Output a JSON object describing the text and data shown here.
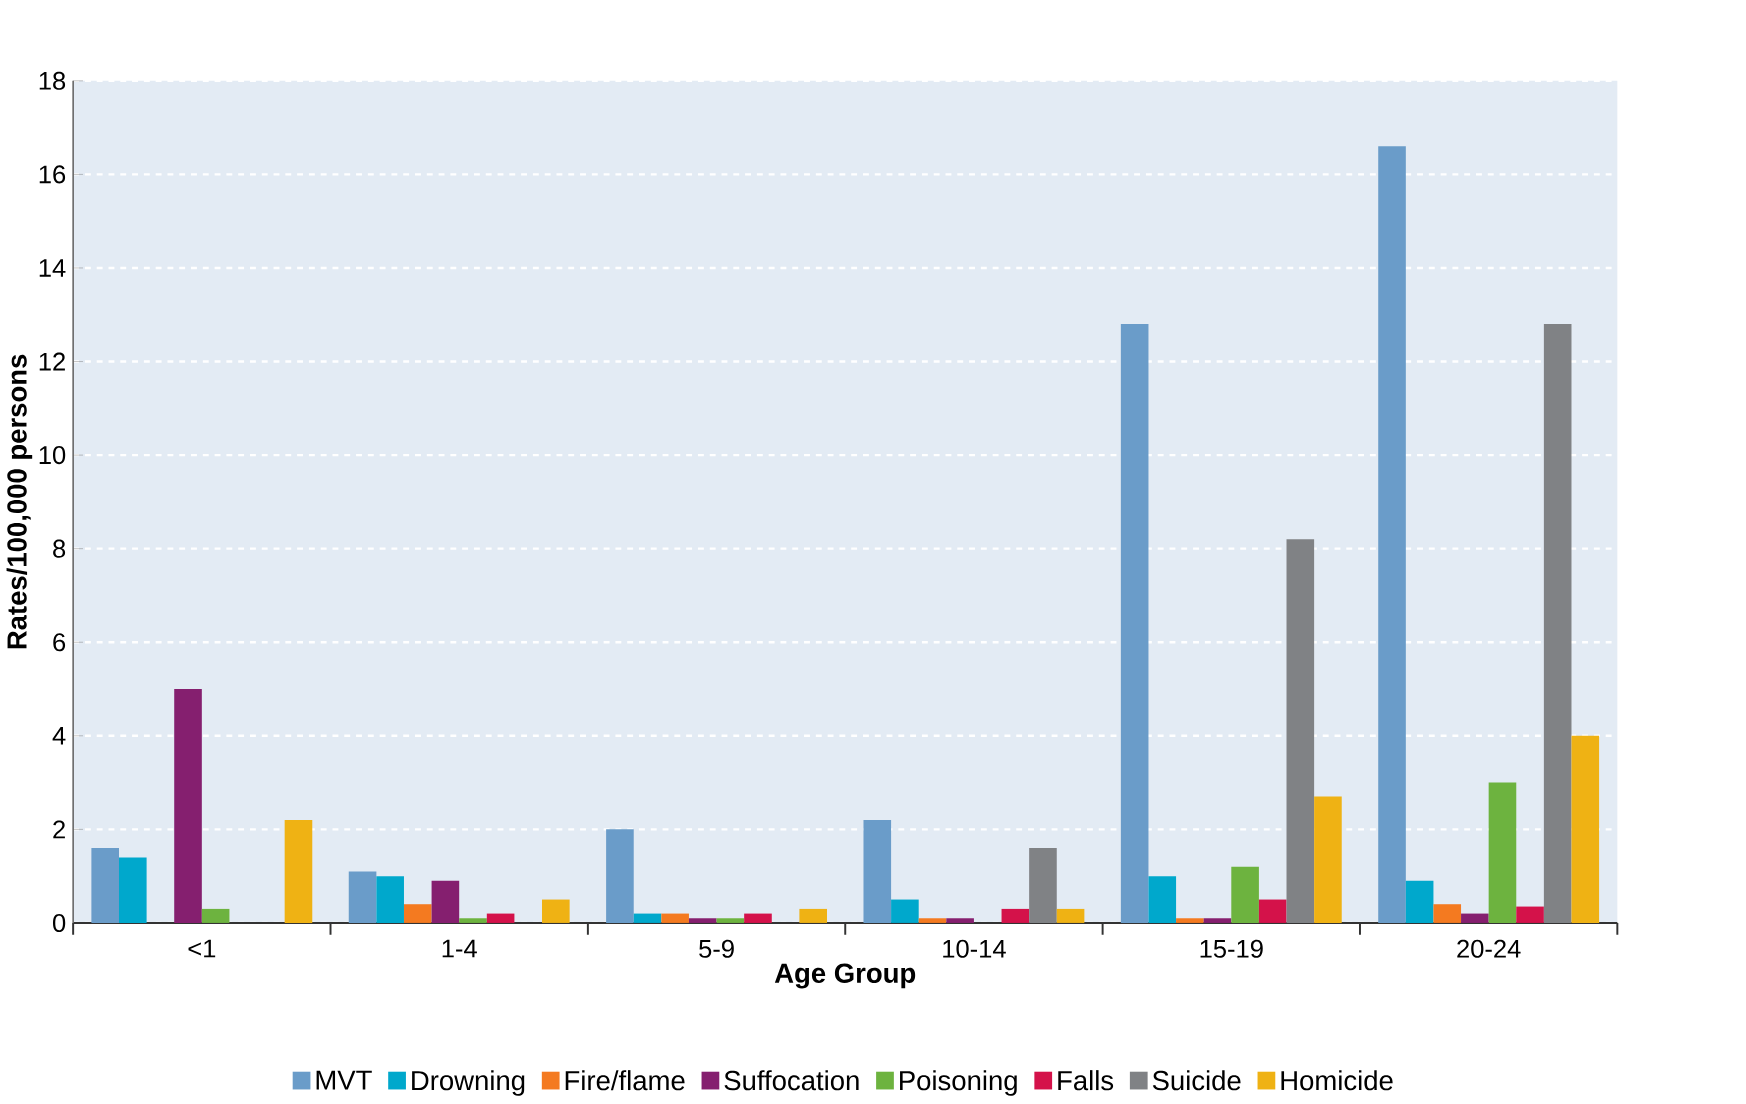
{
  "chart_data": {
    "type": "bar",
    "xlabel": "Age Group",
    "ylabel": "Rates/100,000 persons",
    "categories": [
      "<1",
      "1-4",
      "5-9",
      "10-14",
      "15-19",
      "20-24"
    ],
    "series": [
      {
        "name": "MVT",
        "color": "#6a9cc9",
        "values": [
          1.6,
          1.1,
          2.0,
          2.2,
          12.8,
          16.6
        ]
      },
      {
        "name": "Drowning",
        "color": "#00a8cc",
        "values": [
          1.4,
          1.0,
          0.2,
          0.5,
          1.0,
          0.9
        ]
      },
      {
        "name": "Fire/flame",
        "color": "#f47a20",
        "values": [
          null,
          0.4,
          0.2,
          0.1,
          0.1,
          0.4
        ]
      },
      {
        "name": "Suffocation",
        "color": "#851f6f",
        "values": [
          5.0,
          0.9,
          0.1,
          0.1,
          0.1,
          0.2
        ]
      },
      {
        "name": "Poisoning",
        "color": "#6db33f",
        "values": [
          0.3,
          0.1,
          0.1,
          null,
          1.2,
          3.0
        ]
      },
      {
        "name": "Falls",
        "color": "#d4124a",
        "values": [
          null,
          0.2,
          0.2,
          0.3,
          0.5,
          0.35
        ]
      },
      {
        "name": "Suicide",
        "color": "#808285",
        "values": [
          null,
          null,
          null,
          1.6,
          8.2,
          12.8
        ]
      },
      {
        "name": "Homicide",
        "color": "#efb214",
        "values": [
          2.2,
          0.5,
          0.3,
          0.3,
          2.7,
          4.0
        ]
      }
    ],
    "ylim": [
      0,
      18
    ],
    "yticks": [
      0,
      2,
      4,
      6,
      8,
      10,
      12,
      14,
      16,
      18
    ],
    "grid": "y",
    "legend": "bottom"
  }
}
